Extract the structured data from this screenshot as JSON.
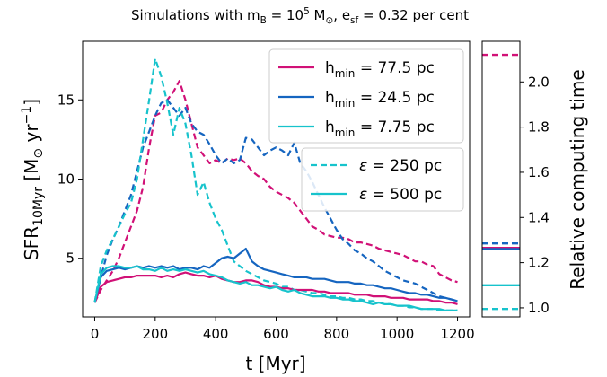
{
  "figure": {
    "title": {
      "pre": "Simulations with m",
      "sub1": "B",
      "mid1": " = 10",
      "sup": "5",
      "mid2": " M",
      "sub2": "⊙",
      "mid3": ", e",
      "sub3": "sf",
      "post": " = 0.32 per cent"
    }
  },
  "chart_data": [
    {
      "type": "line",
      "xlabel": "t [Myr]",
      "ylabel": {
        "main": "SFR",
        "sub": "10Myr",
        "rest": " [M",
        "sub2": "⊙",
        "unit": " yr",
        "sup": "−1",
        "close": "]"
      },
      "xlim": [
        -40,
        1240
      ],
      "ylim": [
        1.3,
        18.7
      ],
      "xticks": [
        0,
        200,
        400,
        600,
        800,
        1000,
        1200
      ],
      "yticks": [
        5,
        10,
        15
      ],
      "grid": false,
      "legend_resolution": {
        "placement": "top-right",
        "entries": [
          {
            "label_main": "h",
            "label_sub": "min",
            "label_rest": " = 77.5 pc",
            "color": "#d11177"
          },
          {
            "label_main": "h",
            "label_sub": "min",
            "label_rest": " = 24.5 pc",
            "color": "#1565c0"
          },
          {
            "label_main": "h",
            "label_sub": "min",
            "label_rest": " = 7.75 pc",
            "color": "#17c3cc"
          }
        ]
      },
      "legend_softening": {
        "placement": "center-right",
        "entries": [
          {
            "symbol": "ε",
            "label": " = 250 pc",
            "dash": true
          },
          {
            "symbol": "ε",
            "label": " = 500 pc",
            "dash": false
          }
        ]
      },
      "series": [
        {
          "color": "#d11177",
          "dash": true,
          "x": [
            0,
            20,
            40,
            60,
            80,
            100,
            120,
            140,
            160,
            180,
            200,
            220,
            240,
            260,
            280,
            300,
            320,
            340,
            360,
            380,
            400,
            420,
            440,
            460,
            480,
            500,
            520,
            540,
            560,
            580,
            600,
            620,
            640,
            660,
            680,
            700,
            720,
            740,
            760,
            780,
            800,
            820,
            840,
            860,
            880,
            900,
            920,
            940,
            960,
            980,
            1000,
            1020,
            1040,
            1060,
            1080,
            1100,
            1120,
            1140,
            1160,
            1180,
            1200
          ],
          "y": [
            2.2,
            3.0,
            3.6,
            4.2,
            5.0,
            6.0,
            7.0,
            8.0,
            9.5,
            12.0,
            14.0,
            14.2,
            15.0,
            15.5,
            16.2,
            15.0,
            13.5,
            12.0,
            11.5,
            11.0,
            11.2,
            11.0,
            11.3,
            11.2,
            11.3,
            11.0,
            10.5,
            10.2,
            10.0,
            9.5,
            9.2,
            9.0,
            8.8,
            8.5,
            8.0,
            7.5,
            7.0,
            6.8,
            6.5,
            6.4,
            6.3,
            6.3,
            6.2,
            6.0,
            6.0,
            5.9,
            5.8,
            5.6,
            5.5,
            5.4,
            5.3,
            5.2,
            5.0,
            4.8,
            4.8,
            4.6,
            4.5,
            4.0,
            3.8,
            3.6,
            3.5
          ]
        },
        {
          "color": "#1565c0",
          "dash": true,
          "x": [
            0,
            20,
            40,
            60,
            80,
            100,
            120,
            140,
            160,
            180,
            200,
            220,
            240,
            260,
            280,
            300,
            320,
            340,
            360,
            380,
            400,
            420,
            440,
            460,
            480,
            500,
            520,
            540,
            560,
            580,
            600,
            620,
            640,
            660,
            680,
            700,
            720,
            740,
            760,
            780,
            800,
            820,
            840,
            860,
            880,
            900,
            920,
            940,
            960,
            980,
            1000,
            1020,
            1040,
            1060,
            1080,
            1100,
            1120,
            1140,
            1160,
            1180,
            1200
          ],
          "y": [
            2.2,
            3.8,
            5.2,
            6.2,
            7.0,
            8.0,
            9.0,
            10.5,
            12.0,
            13.0,
            14.0,
            14.8,
            15.0,
            14.5,
            14.0,
            14.5,
            13.5,
            13.0,
            12.8,
            12.2,
            11.5,
            11.0,
            11.3,
            11.0,
            11.2,
            12.6,
            12.5,
            12.0,
            11.5,
            11.8,
            12.0,
            11.8,
            11.5,
            12.3,
            11.0,
            10.5,
            9.8,
            9.0,
            8.2,
            7.5,
            6.8,
            6.2,
            5.9,
            5.5,
            5.3,
            5.0,
            4.8,
            4.5,
            4.2,
            4.0,
            3.8,
            3.6,
            3.5,
            3.4,
            3.2,
            3.0,
            2.8,
            2.6,
            2.5,
            2.4,
            2.3
          ]
        },
        {
          "color": "#17c3cc",
          "dash": true,
          "x": [
            0,
            20,
            40,
            60,
            80,
            100,
            120,
            140,
            160,
            180,
            200,
            220,
            240,
            260,
            280,
            300,
            320,
            340,
            360,
            380,
            400,
            420,
            440,
            460,
            480,
            500,
            520,
            540,
            560,
            580,
            600,
            620,
            640,
            660,
            680,
            700,
            720,
            740,
            760,
            780,
            800,
            820,
            840,
            860,
            880,
            900,
            920,
            940,
            960,
            980,
            1000,
            1020,
            1040,
            1060,
            1080,
            1100,
            1120,
            1140,
            1160,
            1180,
            1200
          ],
          "y": [
            2.2,
            4.5,
            5.5,
            6.2,
            7.0,
            7.8,
            8.5,
            10.0,
            12.5,
            15.0,
            17.6,
            16.5,
            14.8,
            12.8,
            14.5,
            13.5,
            11.5,
            9.0,
            9.8,
            8.5,
            7.5,
            6.8,
            5.8,
            4.8,
            4.5,
            4.2,
            4.0,
            3.8,
            3.6,
            3.5,
            3.4,
            3.2,
            3.2,
            3.0,
            3.0,
            2.9,
            2.8,
            2.8,
            2.7,
            2.6,
            2.6,
            2.5,
            2.5,
            2.4,
            2.4,
            2.3,
            2.3,
            2.2,
            2.1,
            2.1,
            2.0,
            2.0,
            1.9,
            1.9,
            1.8,
            1.8,
            1.8,
            1.7,
            1.7,
            1.7,
            1.7
          ]
        },
        {
          "color": "#d11177",
          "dash": false,
          "x": [
            0,
            20,
            40,
            60,
            80,
            100,
            120,
            140,
            160,
            180,
            200,
            220,
            240,
            260,
            280,
            300,
            320,
            340,
            360,
            380,
            400,
            420,
            440,
            460,
            480,
            500,
            520,
            540,
            560,
            580,
            600,
            620,
            640,
            660,
            680,
            700,
            720,
            740,
            760,
            780,
            800,
            820,
            840,
            860,
            880,
            900,
            920,
            940,
            960,
            980,
            1000,
            1020,
            1040,
            1060,
            1080,
            1100,
            1120,
            1140,
            1160,
            1180,
            1200
          ],
          "y": [
            2.2,
            3.2,
            3.5,
            3.6,
            3.7,
            3.8,
            3.8,
            3.9,
            3.9,
            3.9,
            3.9,
            3.8,
            3.9,
            3.8,
            4.0,
            4.1,
            4.0,
            3.9,
            3.9,
            3.8,
            3.9,
            3.7,
            3.6,
            3.5,
            3.5,
            3.6,
            3.6,
            3.5,
            3.3,
            3.2,
            3.2,
            3.1,
            3.1,
            3.0,
            3.0,
            3.0,
            3.0,
            2.9,
            2.9,
            2.8,
            2.8,
            2.8,
            2.8,
            2.7,
            2.7,
            2.7,
            2.6,
            2.6,
            2.6,
            2.5,
            2.5,
            2.5,
            2.4,
            2.4,
            2.4,
            2.4,
            2.3,
            2.3,
            2.2,
            2.2,
            2.1
          ]
        },
        {
          "color": "#1565c0",
          "dash": false,
          "x": [
            0,
            20,
            40,
            60,
            80,
            100,
            120,
            140,
            160,
            180,
            200,
            220,
            240,
            260,
            280,
            300,
            320,
            340,
            360,
            380,
            400,
            420,
            440,
            460,
            480,
            500,
            520,
            540,
            560,
            580,
            600,
            620,
            640,
            660,
            680,
            700,
            720,
            740,
            760,
            780,
            800,
            820,
            840,
            860,
            880,
            900,
            920,
            940,
            960,
            980,
            1000,
            1020,
            1040,
            1060,
            1080,
            1100,
            1120,
            1140,
            1160,
            1180,
            1200
          ],
          "y": [
            2.2,
            3.8,
            4.2,
            4.3,
            4.4,
            4.3,
            4.4,
            4.5,
            4.4,
            4.5,
            4.4,
            4.5,
            4.4,
            4.5,
            4.3,
            4.4,
            4.4,
            4.3,
            4.5,
            4.4,
            4.7,
            5.0,
            5.1,
            5.0,
            5.3,
            5.6,
            4.8,
            4.5,
            4.3,
            4.2,
            4.1,
            4.0,
            3.9,
            3.8,
            3.8,
            3.8,
            3.7,
            3.7,
            3.7,
            3.6,
            3.5,
            3.5,
            3.5,
            3.4,
            3.4,
            3.3,
            3.3,
            3.2,
            3.1,
            3.1,
            3.0,
            2.9,
            2.8,
            2.8,
            2.7,
            2.7,
            2.6,
            2.5,
            2.5,
            2.4,
            2.3
          ]
        },
        {
          "color": "#17c3cc",
          "dash": false,
          "x": [
            0,
            20,
            40,
            60,
            80,
            100,
            120,
            140,
            160,
            180,
            200,
            220,
            240,
            260,
            280,
            300,
            320,
            340,
            360,
            380,
            400,
            420,
            440,
            460,
            480,
            500,
            520,
            540,
            560,
            580,
            600,
            620,
            640,
            660,
            680,
            700,
            720,
            740,
            760,
            780,
            800,
            820,
            840,
            860,
            880,
            900,
            920,
            940,
            960,
            980,
            1000,
            1020,
            1040,
            1060,
            1080,
            1100,
            1120,
            1140,
            1160,
            1180,
            1200
          ],
          "y": [
            2.2,
            4.0,
            4.4,
            4.5,
            4.5,
            4.4,
            4.4,
            4.5,
            4.3,
            4.3,
            4.2,
            4.4,
            4.2,
            4.3,
            4.2,
            4.3,
            4.2,
            4.1,
            4.2,
            4.0,
            3.9,
            3.8,
            3.6,
            3.5,
            3.4,
            3.5,
            3.3,
            3.3,
            3.2,
            3.1,
            3.2,
            3.0,
            2.9,
            3.0,
            2.8,
            2.7,
            2.6,
            2.6,
            2.6,
            2.5,
            2.5,
            2.4,
            2.4,
            2.3,
            2.3,
            2.2,
            2.1,
            2.2,
            2.1,
            2.1,
            2.0,
            2.0,
            2.0,
            1.9,
            1.8,
            1.8,
            1.8,
            1.8,
            1.7,
            1.7,
            1.7
          ]
        }
      ]
    },
    {
      "type": "line",
      "ylabel": "Relative computing time",
      "ylim": [
        0.96,
        2.18
      ],
      "yticks": [
        1.0,
        1.2,
        1.4,
        1.6,
        1.8,
        2.0
      ],
      "grid": false,
      "markers": [
        {
          "value": 2.12,
          "color": "#d11177",
          "dash": true
        },
        {
          "value": 1.285,
          "color": "#1565c0",
          "dash": true
        },
        {
          "value": 1.265,
          "color": "#d11177",
          "dash": false
        },
        {
          "value": 1.26,
          "color": "#1565c0",
          "dash": false
        },
        {
          "value": 1.1,
          "color": "#17c3cc",
          "dash": false
        },
        {
          "value": 0.995,
          "color": "#17c3cc",
          "dash": true
        }
      ]
    }
  ]
}
